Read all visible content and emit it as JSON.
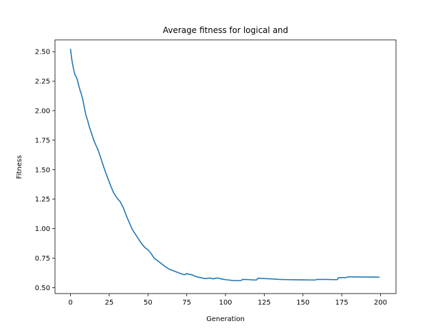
{
  "chart_data": {
    "type": "line",
    "title": "Average fitness for logical and",
    "xlabel": "Generation",
    "ylabel": "Fitness",
    "xlim": [
      -10,
      210
    ],
    "ylim": [
      0.45,
      2.6
    ],
    "xticks": [
      0,
      25,
      50,
      75,
      100,
      125,
      150,
      175,
      200
    ],
    "xtick_labels": [
      "0",
      "25",
      "50",
      "75",
      "100",
      "125",
      "150",
      "175",
      "200"
    ],
    "yticks": [
      0.5,
      0.75,
      1.0,
      1.25,
      1.5,
      1.75,
      2.0,
      2.25,
      2.5
    ],
    "ytick_labels": [
      "0.50",
      "0.75",
      "1.00",
      "1.25",
      "1.50",
      "1.75",
      "2.00",
      "2.25",
      "2.50"
    ],
    "grid": false,
    "series_color": "#1f77b4",
    "series": [
      {
        "x": [
          0,
          1,
          2,
          3,
          4,
          5,
          6,
          7,
          8,
          9,
          10,
          11,
          12,
          13,
          14,
          15,
          16,
          17,
          18,
          19,
          20,
          22,
          24,
          26,
          28,
          30,
          32,
          34,
          36,
          38,
          40,
          42,
          44,
          46,
          48,
          50,
          52,
          54,
          56,
          58,
          60,
          62,
          64,
          66,
          68,
          70,
          72,
          74,
          75,
          76,
          78,
          80,
          82,
          84,
          86,
          88,
          90,
          92,
          94,
          95,
          96,
          98,
          100,
          102,
          104,
          106,
          108,
          110,
          111,
          115,
          118,
          120,
          121,
          125,
          130,
          135,
          140,
          145,
          150,
          155,
          158,
          159,
          165,
          170,
          172,
          173,
          175,
          178,
          179,
          185,
          190,
          195,
          199
        ],
        "values": [
          2.52,
          2.42,
          2.35,
          2.3,
          2.28,
          2.23,
          2.18,
          2.14,
          2.09,
          2.02,
          1.96,
          1.92,
          1.87,
          1.83,
          1.79,
          1.75,
          1.72,
          1.69,
          1.66,
          1.62,
          1.58,
          1.5,
          1.43,
          1.36,
          1.3,
          1.26,
          1.23,
          1.18,
          1.11,
          1.05,
          0.99,
          0.95,
          0.91,
          0.87,
          0.84,
          0.82,
          0.79,
          0.75,
          0.73,
          0.71,
          0.69,
          0.67,
          0.655,
          0.645,
          0.635,
          0.625,
          0.615,
          0.61,
          0.62,
          0.615,
          0.61,
          0.6,
          0.59,
          0.585,
          0.578,
          0.578,
          0.582,
          0.575,
          0.58,
          0.582,
          0.578,
          0.572,
          0.568,
          0.565,
          0.562,
          0.56,
          0.56,
          0.56,
          0.57,
          0.568,
          0.565,
          0.565,
          0.58,
          0.577,
          0.574,
          0.57,
          0.568,
          0.567,
          0.566,
          0.565,
          0.565,
          0.57,
          0.57,
          0.568,
          0.568,
          0.585,
          0.585,
          0.586,
          0.592,
          0.591,
          0.59,
          0.59,
          0.589
        ]
      }
    ]
  }
}
